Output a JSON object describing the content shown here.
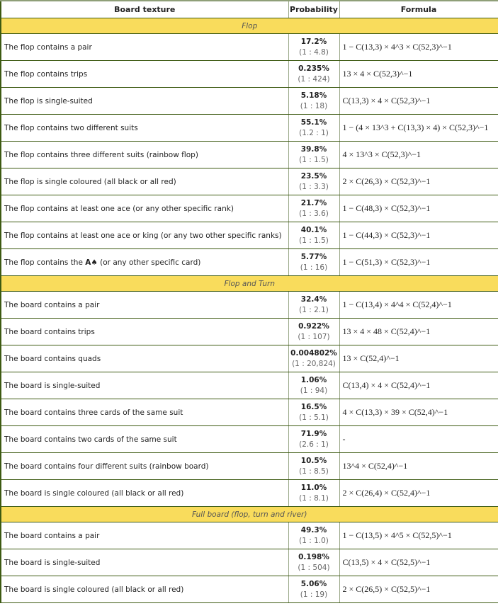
{
  "headers": [
    "Board texture",
    "Probability",
    "Formula"
  ],
  "sections": [
    {
      "title": "Flop",
      "rows": [
        {
          "desc": "The flop contains a pair",
          "pct": "17.2%",
          "odds": "(1 : 4.8)",
          "formula": "1 − C(13,3) × 4^3 × C(52,3)^−1"
        },
        {
          "desc": "The flop contains trips",
          "pct": "0.235%",
          "odds": "(1 : 424)",
          "formula": "13 × 4 × C(52,3)^−1"
        },
        {
          "desc": "The flop is single-suited",
          "pct": "5.18%",
          "odds": "(1 : 18)",
          "formula": "C(13,3) × 4 × C(52,3)^−1"
        },
        {
          "desc": "The flop contains two different suits",
          "pct": "55.1%",
          "odds": "(1.2 : 1)",
          "formula": "1 − (4 × 13^3 + C(13,3) × 4) × C(52,3)^−1"
        },
        {
          "desc": "The flop contains three different suits (rainbow flop)",
          "pct": "39.8%",
          "odds": "(1 : 1.5)",
          "formula": "4 × 13^3 × C(52,3)^−1"
        },
        {
          "desc": "The flop is single coloured (all black or all red)",
          "pct": "23.5%",
          "odds": "(1 : 3.3)",
          "formula": "2 × C(26,3) × C(52,3)^−1"
        },
        {
          "desc": "The flop contains at least one ace (or any other specific rank)",
          "pct": "21.7%",
          "odds": "(1 : 3.6)",
          "formula": "1 − C(48,3) × C(52,3)^−1"
        },
        {
          "desc": "The flop contains at least one ace or king (or any two other specific ranks)",
          "pct": "40.1%",
          "odds": "(1 : 1.5)",
          "formula": "1 − C(44,3) × C(52,3)^−1"
        },
        {
          "desc_pre": "The flop contains the ",
          "desc_card": "A♠",
          "desc_post": " (or any other specific card)",
          "pct": "5.77%",
          "odds": "(1 : 16)",
          "formula": "1 − C(51,3) × C(52,3)^−1"
        }
      ]
    },
    {
      "title": "Flop and Turn",
      "rows": [
        {
          "desc": "The board contains a pair",
          "pct": "32.4%",
          "odds": "(1 : 2.1)",
          "formula": "1 − C(13,4) × 4^4 × C(52,4)^−1"
        },
        {
          "desc": "The board contains trips",
          "pct": "0.922%",
          "odds": "(1 : 107)",
          "formula": "13 × 4 × 48 × C(52,4)^−1"
        },
        {
          "desc": "The board contains quads",
          "pct": "0.004802%",
          "odds": "(1 : 20,824)",
          "formula": "13 × C(52,4)^−1"
        },
        {
          "desc": "The board is single-suited",
          "pct": "1.06%",
          "odds": "(1 : 94)",
          "formula": "C(13,4) × 4 × C(52,4)^−1"
        },
        {
          "desc": "The board contains three cards of the same suit",
          "pct": "16.5%",
          "odds": "(1 : 5.1)",
          "formula": "4 × C(13,3) × 39 × C(52,4)^−1"
        },
        {
          "desc": "The board contains two cards of the same suit",
          "pct": "71.9%",
          "odds": "(2.6 : 1)",
          "formula": "-"
        },
        {
          "desc": "The board contains four different suits (rainbow board)",
          "pct": "10.5%",
          "odds": "(1 : 8.5)",
          "formula": "13^4 × C(52,4)^−1"
        },
        {
          "desc": "The board is single coloured (all black or all red)",
          "pct": "11.0%",
          "odds": "(1 : 8.1)",
          "formula": "2 × C(26,4) × C(52,4)^−1"
        }
      ]
    },
    {
      "title": "Full board (flop, turn and river)",
      "rows": [
        {
          "desc": "The board contains a pair",
          "pct": "49.3%",
          "odds": "(1 : 1.0)",
          "formula": "1 − C(13,5) × 4^5 × C(52,5)^−1"
        },
        {
          "desc": "The board is single-suited",
          "pct": "0.198%",
          "odds": "(1 : 504)",
          "formula": "C(13,5) × 4 × C(52,5)^−1"
        },
        {
          "desc": "The board is single coloured (all black or all red)",
          "pct": "5.06%",
          "odds": "(1 : 19)",
          "formula": "2 × C(26,5) × C(52,5)^−1"
        }
      ]
    }
  ],
  "colors": {
    "section_bg": "#f9dc5c",
    "border": "#3d5a12"
  }
}
